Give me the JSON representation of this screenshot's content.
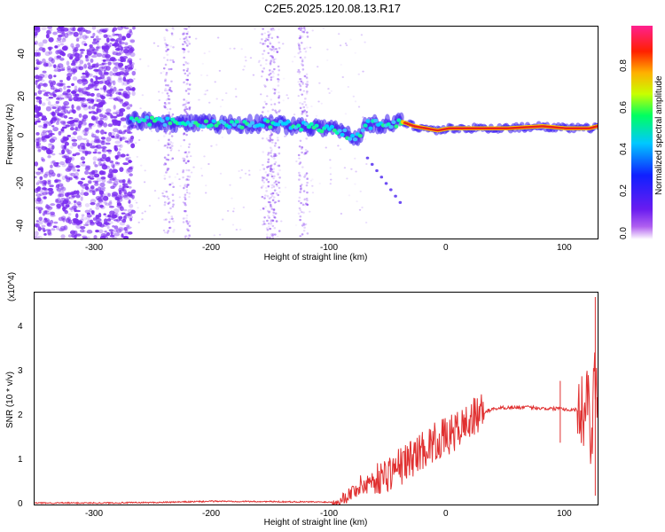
{
  "title": "C2E5.2025.120.08.13.R17",
  "colors": {
    "snr_line": "#e03030",
    "spectrogram_noise": "#7b2cf0",
    "spectrogram_peak": "#e8201a"
  },
  "chart_data": [
    {
      "type": "heatmap",
      "xlabel": "Height of straight line (km)",
      "ylabel": "Frequency (Hz)",
      "xlim": [
        -355,
        127
      ],
      "ylim": [
        -50,
        50
      ],
      "x_ticks": [
        "-300",
        "-200",
        "-100",
        "0",
        "100"
      ],
      "y_ticks": [
        "-40",
        "-20",
        "0",
        "20",
        "40"
      ],
      "colorbar": {
        "label": "Normalized spectral amplitude",
        "range": [
          0,
          1
        ],
        "ticks": [
          "0.0",
          "0.2",
          "0.4",
          "0.6",
          "0.8"
        ]
      },
      "ridge_frequency_hz": {
        "x": [
          -275,
          -250,
          -200,
          -150,
          -120,
          -100,
          -90,
          -80,
          -70,
          -50,
          -40,
          -30,
          -20,
          -10,
          0,
          20,
          50,
          80,
          100,
          120,
          127
        ],
        "y": [
          6,
          5,
          4,
          4,
          3,
          2,
          0,
          -3,
          4,
          4,
          5,
          3,
          2,
          1,
          2,
          2,
          2,
          3,
          2,
          2,
          3
        ]
      }
    },
    {
      "type": "line",
      "xlabel": "Height of straight line (km)",
      "ylabel": "SNR (10 * v/v)",
      "scale_label": "(x10^4)",
      "xlim": [
        -355,
        127
      ],
      "ylim": [
        0,
        4.8
      ],
      "x_ticks": [
        "-300",
        "-200",
        "-100",
        "0",
        "100"
      ],
      "y_ticks": [
        "0",
        "1",
        "2",
        "3",
        "4"
      ],
      "series": [
        {
          "x": [
            -355,
            -300,
            -250,
            -200,
            -150,
            -100,
            -90,
            -80,
            -70,
            -60,
            -50,
            -40,
            -30,
            -20,
            -10,
            0,
            10,
            20,
            30,
            40,
            50,
            60,
            70,
            80,
            90,
            95,
            100,
            110,
            115,
            118,
            120,
            122,
            124,
            127
          ],
          "y": [
            0.02,
            0.02,
            0.03,
            0.06,
            0.05,
            0.04,
            0.15,
            0.35,
            0.5,
            0.6,
            0.75,
            0.9,
            1.1,
            1.3,
            1.45,
            1.55,
            1.75,
            1.95,
            2.1,
            2.18,
            2.2,
            2.2,
            2.2,
            2.18,
            2.17,
            2.2,
            2.15,
            2.15,
            2.1,
            2.6,
            2.3,
            1.1,
            3.6,
            2.2
          ]
        }
      ]
    }
  ]
}
